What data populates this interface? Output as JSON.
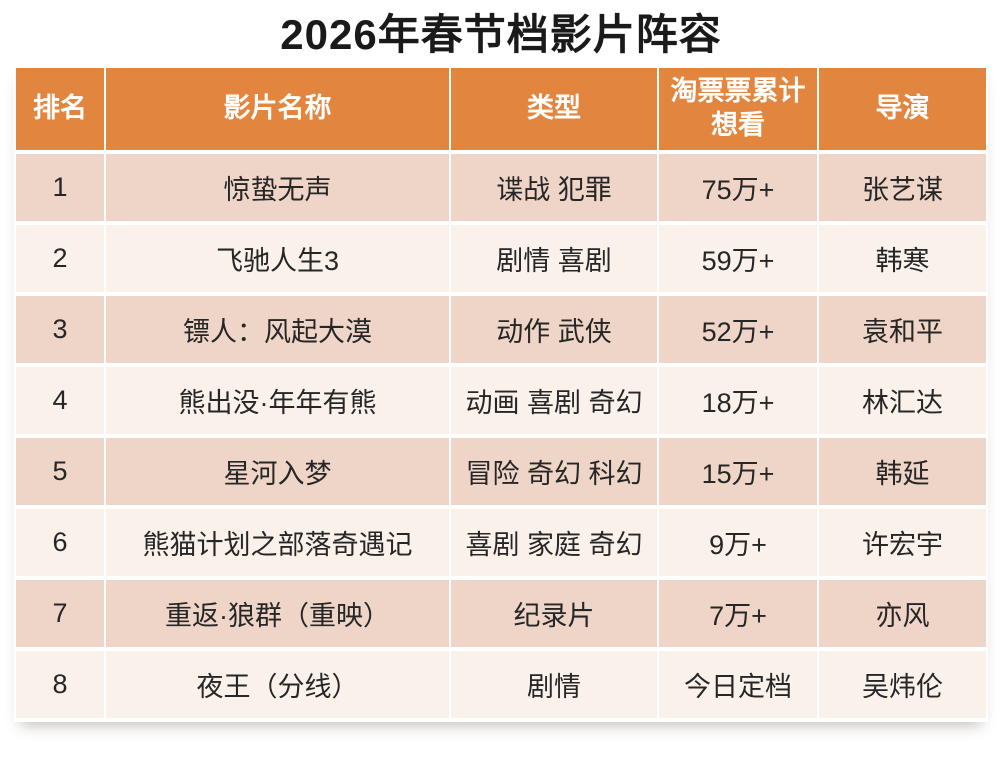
{
  "title": "2026年春节档影片阵容",
  "colors": {
    "header_bg": "#E2853E",
    "header_text": "#FFFFFF",
    "row_odd_bg": "#EFD5C7",
    "row_even_bg": "#FAF1EB",
    "cell_text": "#262626",
    "title_text": "#1A1A1A",
    "page_bg": "#FFFFFF"
  },
  "table": {
    "headers": [
      "排名",
      "影片名称",
      "类型",
      "淘票票累计\n想看",
      "导演"
    ],
    "rows": [
      [
        "1",
        "惊蛰无声",
        "谍战 犯罪",
        "75万+",
        "张艺谋"
      ],
      [
        "2",
        "飞驰人生3",
        "剧情 喜剧",
        "59万+",
        "韩寒"
      ],
      [
        "3",
        "镖人：风起大漠",
        "动作 武侠",
        "52万+",
        "袁和平"
      ],
      [
        "4",
        "熊出没·年年有熊",
        "动画 喜剧 奇幻",
        "18万+",
        "林汇达"
      ],
      [
        "5",
        "星河入梦",
        "冒险 奇幻 科幻",
        "15万+",
        "韩延"
      ],
      [
        "6",
        "熊猫计划之部落奇遇记",
        "喜剧 家庭 奇幻",
        "9万+",
        "许宏宇"
      ],
      [
        "7",
        "重返·狼群（重映）",
        "纪录片",
        "7万+",
        "亦风"
      ],
      [
        "8",
        "夜王（分线）",
        "剧情",
        "今日定档",
        "吴炜伦"
      ]
    ]
  },
  "chart_data": {
    "type": "table",
    "title": "2026年春节档影片阵容",
    "columns": [
      "排名",
      "影片名称",
      "类型",
      "淘票票累计想看",
      "导演"
    ],
    "rows": [
      {
        "排名": 1,
        "影片名称": "惊蛰无声",
        "类型": "谍战 犯罪",
        "淘票票累计想看": "75万+",
        "导演": "张艺谋"
      },
      {
        "排名": 2,
        "影片名称": "飞驰人生3",
        "类型": "剧情 喜剧",
        "淘票票累计想看": "59万+",
        "导演": "韩寒"
      },
      {
        "排名": 3,
        "影片名称": "镖人：风起大漠",
        "类型": "动作 武侠",
        "淘票票累计想看": "52万+",
        "导演": "袁和平"
      },
      {
        "排名": 4,
        "影片名称": "熊出没·年年有熊",
        "类型": "动画 喜剧 奇幻",
        "淘票票累计想看": "18万+",
        "导演": "林汇达"
      },
      {
        "排名": 5,
        "影片名称": "星河入梦",
        "类型": "冒险 奇幻 科幻",
        "淘票票累计想看": "15万+",
        "导演": "韩延"
      },
      {
        "排名": 6,
        "影片名称": "熊猫计划之部落奇遇记",
        "类型": "喜剧 家庭 奇幻",
        "淘票票累计想看": "9万+",
        "导演": "许宏宇"
      },
      {
        "排名": 7,
        "影片名称": "重返·狼群（重映）",
        "类型": "纪录片",
        "淘票票累计想看": "7万+",
        "导演": "亦风"
      },
      {
        "排名": 8,
        "影片名称": "夜王（分线）",
        "类型": "剧情",
        "淘票票累计想看": "今日定档",
        "导演": "吴炜伦"
      }
    ]
  }
}
